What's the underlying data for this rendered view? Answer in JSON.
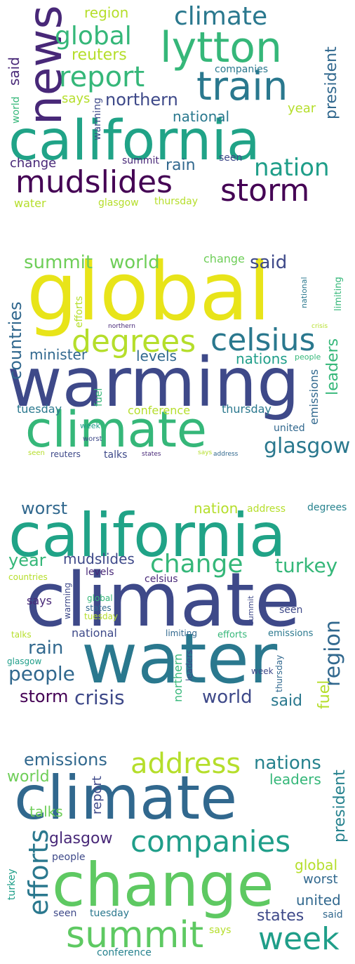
{
  "palette": {
    "purple": "#440154",
    "indigo": "#482878",
    "blue": "#3e4989",
    "slate": "#31688e",
    "teal": "#26828e",
    "sea": "#1f9e89",
    "green": "#35b779",
    "lime": "#6ece58",
    "yellowgreen": "#b5de2b",
    "yellow": "#e8e419"
  },
  "clouds": [
    {
      "words": [
        {
          "text": "california"
        },
        {
          "text": "news"
        },
        {
          "text": "lytton"
        },
        {
          "text": "train"
        },
        {
          "text": "mudslides"
        },
        {
          "text": "storm"
        },
        {
          "text": "report"
        },
        {
          "text": "climate"
        },
        {
          "text": "global"
        },
        {
          "text": "nation"
        },
        {
          "text": "reuters"
        },
        {
          "text": "northern"
        },
        {
          "text": "president"
        },
        {
          "text": "region"
        },
        {
          "text": "said"
        },
        {
          "text": "rain"
        },
        {
          "text": "national"
        },
        {
          "text": "says"
        },
        {
          "text": "change"
        },
        {
          "text": "world"
        },
        {
          "text": "year"
        },
        {
          "text": "companies"
        },
        {
          "text": "warming"
        },
        {
          "text": "summit"
        },
        {
          "text": "seen"
        },
        {
          "text": "water"
        },
        {
          "text": "glasgow"
        },
        {
          "text": "thursday"
        }
      ]
    },
    {
      "words": [
        {
          "text": "global"
        },
        {
          "text": "warming"
        },
        {
          "text": "climate"
        },
        {
          "text": "degrees"
        },
        {
          "text": "celsius"
        },
        {
          "text": "glasgow"
        },
        {
          "text": "summit"
        },
        {
          "text": "world"
        },
        {
          "text": "said"
        },
        {
          "text": "change"
        },
        {
          "text": "countries"
        },
        {
          "text": "minister"
        },
        {
          "text": "levels"
        },
        {
          "text": "nations"
        },
        {
          "text": "leaders"
        },
        {
          "text": "emissions"
        },
        {
          "text": "conference"
        },
        {
          "text": "tuesday"
        },
        {
          "text": "thursday"
        },
        {
          "text": "united"
        },
        {
          "text": "talks"
        },
        {
          "text": "fuel"
        },
        {
          "text": "efforts"
        },
        {
          "text": "national"
        },
        {
          "text": "limiting"
        },
        {
          "text": "people"
        },
        {
          "text": "crisis"
        },
        {
          "text": "northern"
        },
        {
          "text": "week"
        },
        {
          "text": "worst"
        },
        {
          "text": "seen"
        },
        {
          "text": "reuters"
        },
        {
          "text": "states"
        },
        {
          "text": "says"
        },
        {
          "text": "address"
        }
      ]
    },
    {
      "words": [
        {
          "text": "california"
        },
        {
          "text": "climate"
        },
        {
          "text": "water"
        },
        {
          "text": "change"
        },
        {
          "text": "turkey"
        },
        {
          "text": "worst"
        },
        {
          "text": "nation"
        },
        {
          "text": "address"
        },
        {
          "text": "degrees"
        },
        {
          "text": "year"
        },
        {
          "text": "mudslides"
        },
        {
          "text": "countries"
        },
        {
          "text": "levels"
        },
        {
          "text": "celsius"
        },
        {
          "text": "says"
        },
        {
          "text": "warming"
        },
        {
          "text": "global"
        },
        {
          "text": "states"
        },
        {
          "text": "tuesday"
        },
        {
          "text": "summit"
        },
        {
          "text": "seen"
        },
        {
          "text": "national"
        },
        {
          "text": "limiting"
        },
        {
          "text": "efforts"
        },
        {
          "text": "emissions"
        },
        {
          "text": "talks"
        },
        {
          "text": "rain"
        },
        {
          "text": "people"
        },
        {
          "text": "storm"
        },
        {
          "text": "crisis"
        },
        {
          "text": "world"
        },
        {
          "text": "said"
        },
        {
          "text": "region"
        },
        {
          "text": "fuel"
        },
        {
          "text": "northern"
        },
        {
          "text": "leaders"
        },
        {
          "text": "thursday"
        },
        {
          "text": "week"
        },
        {
          "text": "glasgow"
        }
      ]
    },
    {
      "words": [
        {
          "text": "climate"
        },
        {
          "text": "change"
        },
        {
          "text": "summit"
        },
        {
          "text": "companies"
        },
        {
          "text": "week"
        },
        {
          "text": "efforts"
        },
        {
          "text": "address"
        },
        {
          "text": "emissions"
        },
        {
          "text": "nations"
        },
        {
          "text": "world"
        },
        {
          "text": "leaders"
        },
        {
          "text": "president"
        },
        {
          "text": "report"
        },
        {
          "text": "talks"
        },
        {
          "text": "glasgow"
        },
        {
          "text": "global"
        },
        {
          "text": "people"
        },
        {
          "text": "worst"
        },
        {
          "text": "turkey"
        },
        {
          "text": "united"
        },
        {
          "text": "states"
        },
        {
          "text": "seen"
        },
        {
          "text": "tuesday"
        },
        {
          "text": "said"
        },
        {
          "text": "says"
        },
        {
          "text": "conference"
        }
      ]
    }
  ]
}
